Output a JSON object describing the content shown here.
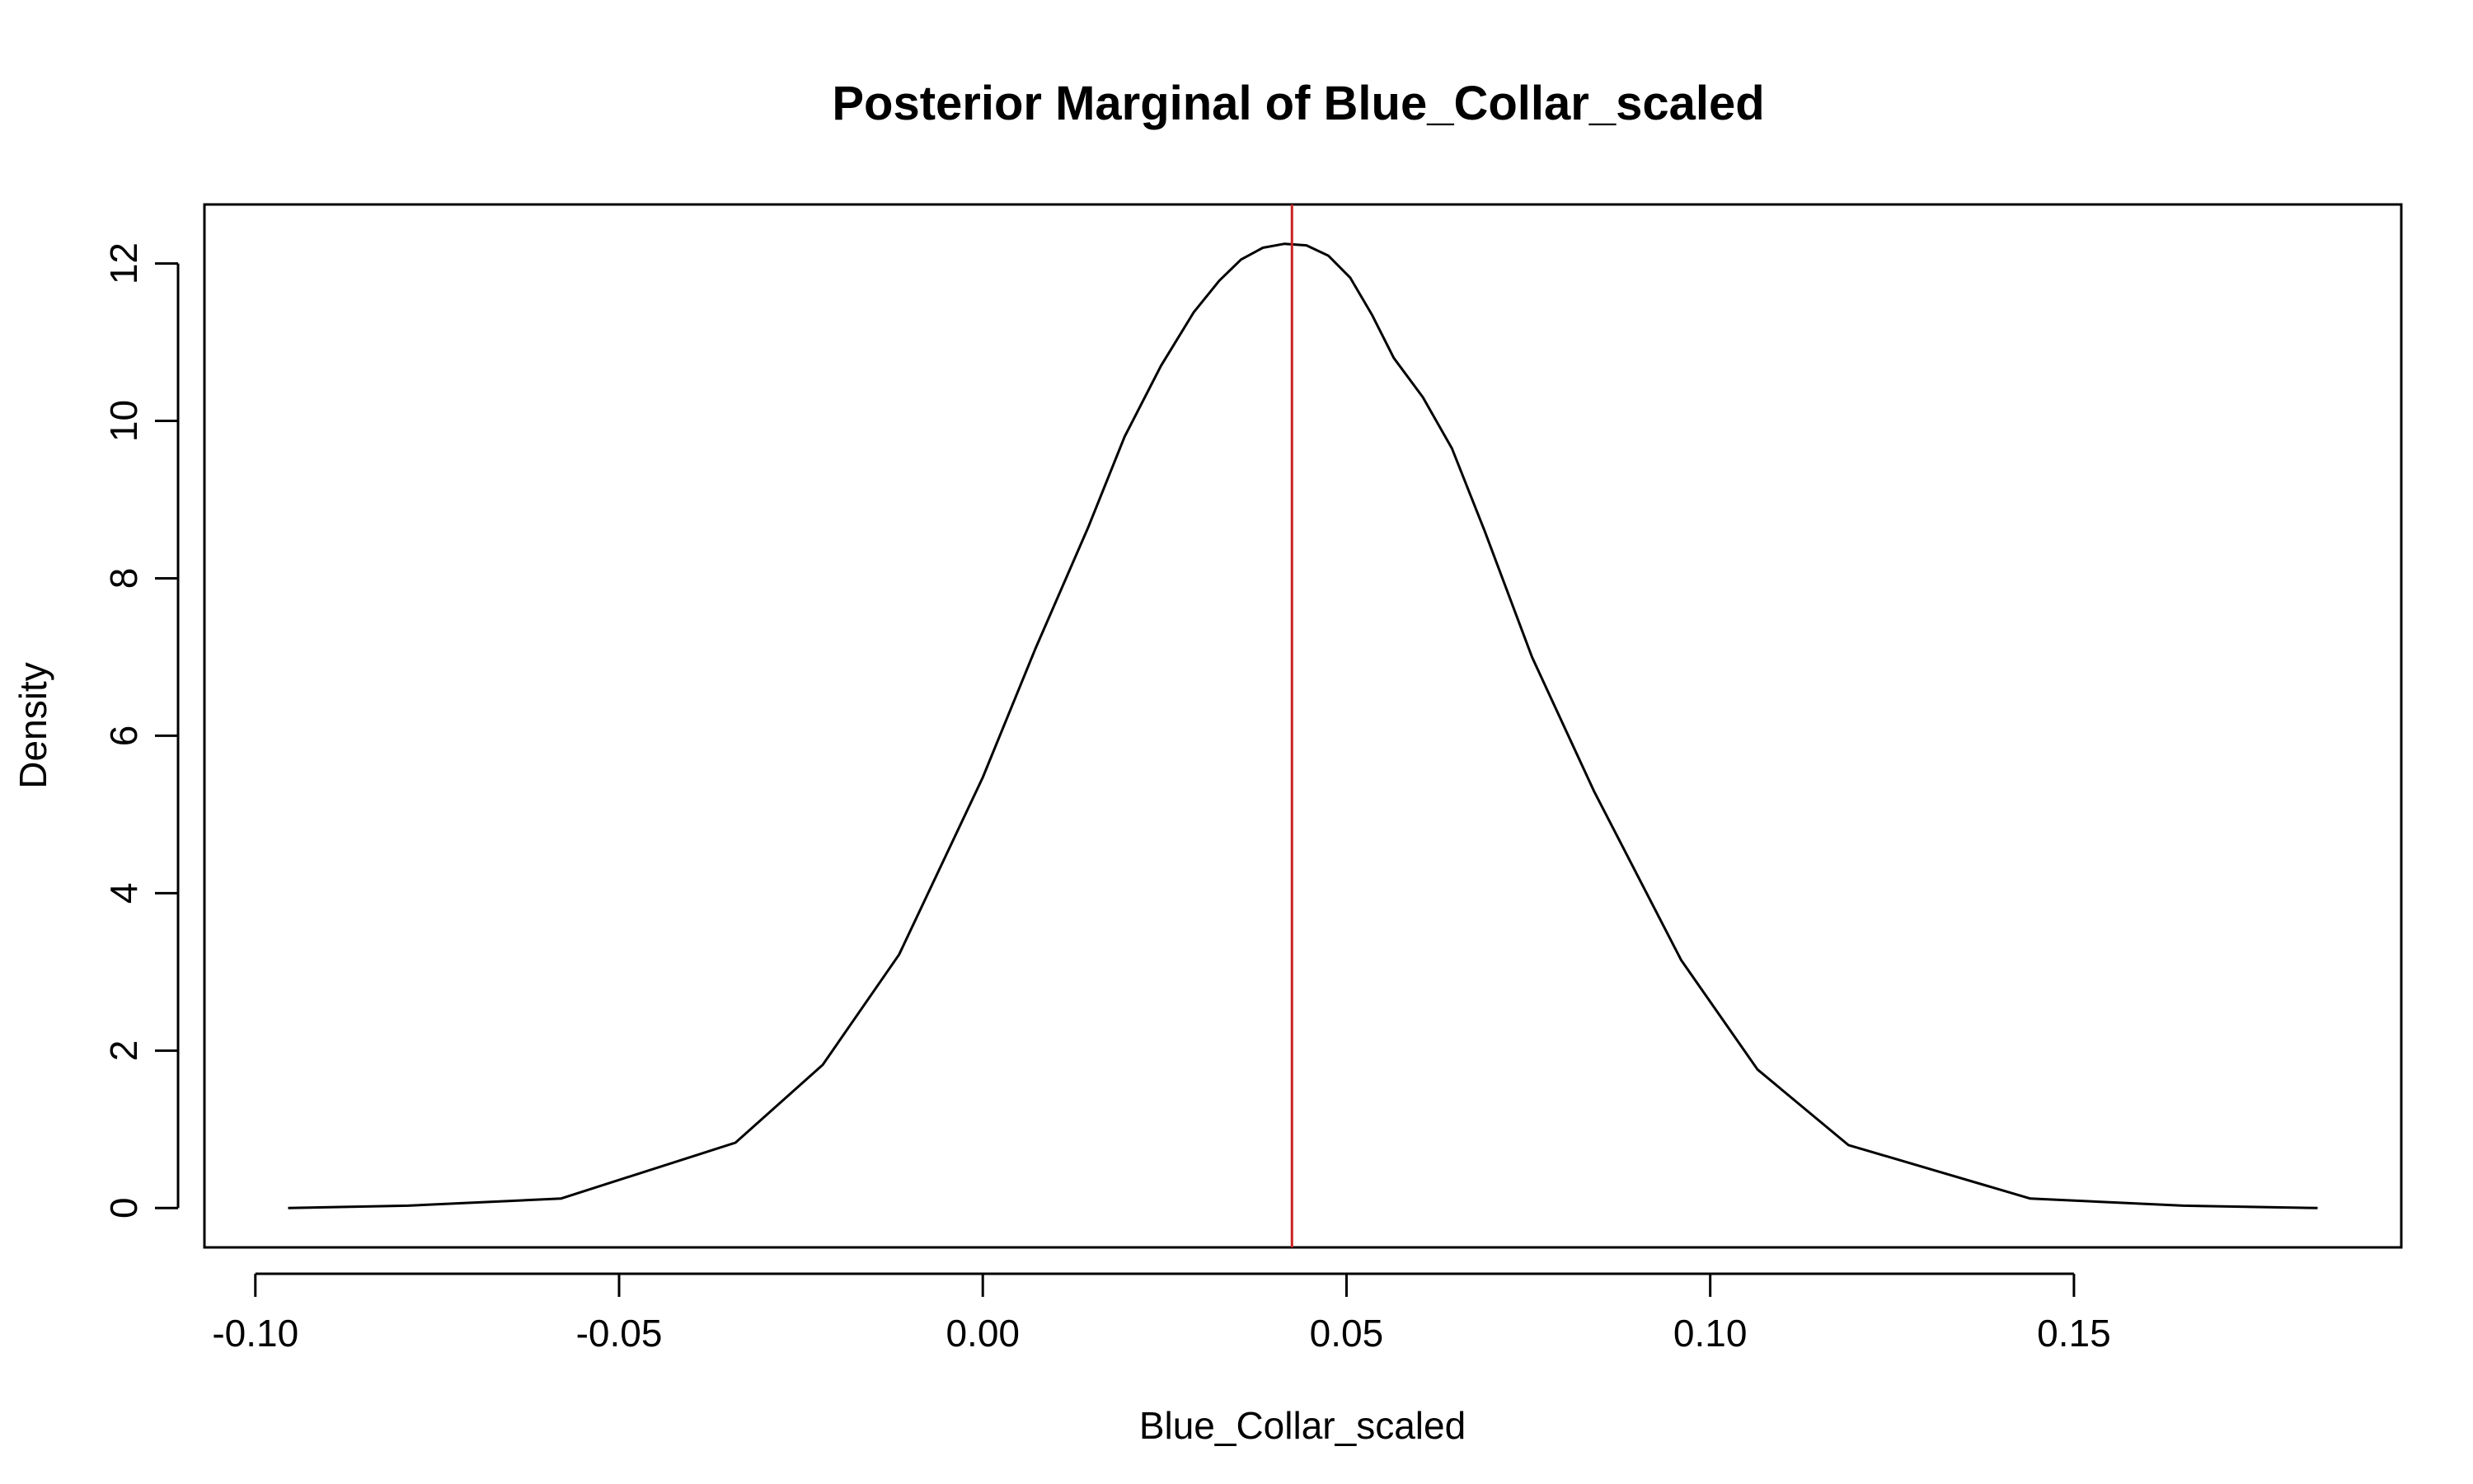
{
  "chart_data": {
    "type": "line",
    "title": "Posterior Marginal of Blue_Collar_scaled",
    "xlabel": "Blue_Collar_scaled",
    "ylabel": "Density",
    "xlim": [
      -0.107,
      0.195
    ],
    "ylim": [
      -0.5,
      12.75
    ],
    "xticks": [
      -0.1,
      -0.05,
      0.0,
      0.05,
      0.1,
      0.15
    ],
    "xtick_labels": [
      "-0.10",
      "-0.05",
      "0.00",
      "0.05",
      "0.10",
      "0.15"
    ],
    "yticks": [
      0,
      2,
      4,
      6,
      8,
      10,
      12
    ],
    "ytick_labels": [
      "0",
      "2",
      "4",
      "6",
      "8",
      "10",
      "12"
    ],
    "grid": false,
    "series": [
      {
        "color": "#000000",
        "x": [
          -0.0955,
          -0.079,
          -0.058,
          -0.034,
          -0.022,
          -0.0115,
          0.0,
          0.0072,
          0.0145,
          0.0195,
          0.0245,
          0.029,
          0.0325,
          0.0355,
          0.0385,
          0.0415,
          0.0445,
          0.0475,
          0.0505,
          0.0535,
          0.0565,
          0.0605,
          0.0645,
          0.069,
          0.0755,
          0.084,
          0.096,
          0.1065,
          0.119,
          0.1315,
          0.144,
          0.165,
          0.1835
        ],
        "y": [
          0.0,
          0.03,
          0.12,
          0.83,
          1.82,
          3.22,
          5.47,
          7.1,
          8.65,
          9.8,
          10.7,
          11.38,
          11.78,
          12.05,
          12.2,
          12.25,
          12.23,
          12.1,
          11.82,
          11.35,
          10.8,
          10.3,
          9.65,
          8.6,
          7.0,
          5.3,
          3.15,
          1.76,
          0.8,
          0.46,
          0.12,
          0.03,
          0.0
        ]
      }
    ],
    "vline": {
      "x": 0.0425,
      "color": "#cc2222"
    }
  }
}
